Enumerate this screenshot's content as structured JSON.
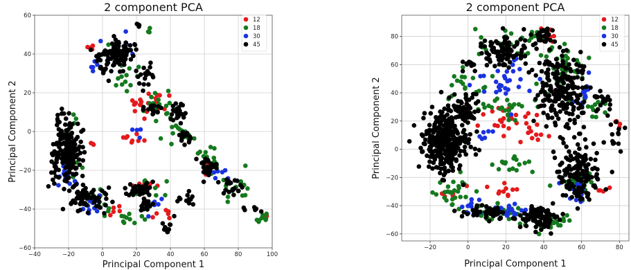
{
  "chart_data": [
    {
      "type": "scatter",
      "title": "2 component PCA",
      "xlabel": "Principal Component 1",
      "ylabel": "Principal Component 2",
      "xlim": [
        -40,
        100
      ],
      "ylim": [
        -60,
        60
      ],
      "xticks": [
        -40,
        -20,
        0,
        20,
        40,
        60,
        80,
        100
      ],
      "yticks": [
        -60,
        -40,
        -20,
        0,
        20,
        40,
        60
      ],
      "tick_labels_x": [
        "−40",
        "−20",
        "0",
        "20",
        "40",
        "60",
        "80",
        "100"
      ],
      "tick_labels_y": [
        "−60",
        "−40",
        "−20",
        "0",
        "20",
        "40",
        "60"
      ],
      "grid": true,
      "legend_position": "top-right",
      "series": [
        {
          "name": "12",
          "color": "#e41a1c",
          "clusters": [
            {
              "cx": -8,
              "cy": 43,
              "rx": 3,
              "ry": 2,
              "n": 4
            },
            {
              "cx": 22,
              "cy": 13,
              "rx": 12,
              "ry": 5,
              "n": 14
            },
            {
              "cx": 32,
              "cy": 16,
              "rx": 10,
              "ry": 4,
              "n": 10
            },
            {
              "cx": 18,
              "cy": -3,
              "rx": 10,
              "ry": 3,
              "n": 8
            },
            {
              "cx": -5,
              "cy": -7,
              "rx": 2,
              "ry": 1.5,
              "n": 3
            },
            {
              "cx": 20,
              "cy": -28,
              "rx": 12,
              "ry": 2,
              "n": 10
            },
            {
              "cx": 5,
              "cy": -42,
              "rx": 6,
              "ry": 3,
              "n": 6
            },
            {
              "cx": 35,
              "cy": -43,
              "rx": 6,
              "ry": 3,
              "n": 6
            },
            {
              "cx": 95,
              "cy": -42,
              "rx": 2,
              "ry": 1.5,
              "n": 2
            },
            {
              "cx": 60,
              "cy": -20,
              "rx": 4,
              "ry": 3,
              "n": 4
            }
          ]
        },
        {
          "name": "18",
          "color": "#157a1e",
          "clusters": [
            {
              "cx": 28,
              "cy": 53,
              "rx": 2,
              "ry": 2,
              "n": 3
            },
            {
              "cx": 10,
              "cy": 30,
              "rx": 10,
              "ry": 12,
              "n": 16
            },
            {
              "cx": 38,
              "cy": 12,
              "rx": 12,
              "ry": 8,
              "n": 18
            },
            {
              "cx": 45,
              "cy": -2,
              "rx": 10,
              "ry": 5,
              "n": 10
            },
            {
              "cx": -17,
              "cy": -10,
              "rx": 5,
              "ry": 14,
              "n": 14
            },
            {
              "cx": 0,
              "cy": -35,
              "rx": 10,
              "ry": 7,
              "n": 14
            },
            {
              "cx": 15,
              "cy": -45,
              "rx": 8,
              "ry": 3,
              "n": 10
            },
            {
              "cx": 60,
              "cy": -15,
              "rx": 8,
              "ry": 8,
              "n": 14
            },
            {
              "cx": 80,
              "cy": -30,
              "rx": 8,
              "ry": 8,
              "n": 14
            },
            {
              "cx": 95,
              "cy": -45,
              "rx": 5,
              "ry": 2,
              "n": 8
            },
            {
              "cx": 30,
              "cy": -30,
              "rx": 10,
              "ry": 4,
              "n": 10
            }
          ]
        },
        {
          "name": "30",
          "color": "#1a33e0",
          "clusters": [
            {
              "cx": -5,
              "cy": 34,
              "rx": 4,
              "ry": 3,
              "n": 5
            },
            {
              "cx": 10,
              "cy": 44,
              "rx": 8,
              "ry": 6,
              "n": 6
            },
            {
              "cx": -20,
              "cy": -25,
              "rx": 6,
              "ry": 6,
              "n": 12
            },
            {
              "cx": -8,
              "cy": -38,
              "rx": 8,
              "ry": 4,
              "n": 12
            },
            {
              "cx": 30,
              "cy": -38,
              "rx": 6,
              "ry": 4,
              "n": 6
            },
            {
              "cx": 68,
              "cy": -22,
              "rx": 6,
              "ry": 6,
              "n": 6
            },
            {
              "cx": 20,
              "cy": 0,
              "rx": 4,
              "ry": 3,
              "n": 4
            }
          ]
        },
        {
          "name": "45",
          "color": "#000000",
          "clusters": [
            {
              "cx": -20,
              "cy": -8,
              "rx": 7,
              "ry": 14,
              "n": 170
            },
            {
              "cx": -28,
              "cy": -20,
              "rx": 4,
              "ry": 10,
              "n": 20
            },
            {
              "cx": 10,
              "cy": 41,
              "rx": 9,
              "ry": 5,
              "n": 90
            },
            {
              "cx": 3,
              "cy": 35,
              "rx": 8,
              "ry": 6,
              "n": 30
            },
            {
              "cx": 25,
              "cy": 28,
              "rx": 5,
              "ry": 8,
              "n": 18
            },
            {
              "cx": 30,
              "cy": 12,
              "rx": 5,
              "ry": 3,
              "n": 18
            },
            {
              "cx": 43,
              "cy": 10,
              "rx": 6,
              "ry": 4,
              "n": 24
            },
            {
              "cx": 48,
              "cy": -3,
              "rx": 5,
              "ry": 3,
              "n": 16
            },
            {
              "cx": 62,
              "cy": -18,
              "rx": 6,
              "ry": 6,
              "n": 30
            },
            {
              "cx": 75,
              "cy": -28,
              "rx": 6,
              "ry": 5,
              "n": 20
            },
            {
              "cx": 22,
              "cy": -30,
              "rx": 7,
              "ry": 3,
              "n": 40
            },
            {
              "cx": -8,
              "cy": -35,
              "rx": 10,
              "ry": 6,
              "n": 60
            },
            {
              "cx": 25,
              "cy": -38,
              "rx": 5,
              "ry": 3,
              "n": 20
            },
            {
              "cx": 38,
              "cy": -48,
              "rx": 3,
              "ry": 5,
              "n": 10
            },
            {
              "cx": 50,
              "cy": -35,
              "rx": 6,
              "ry": 4,
              "n": 12
            },
            {
              "cx": 88,
              "cy": -40,
              "rx": 4,
              "ry": 3,
              "n": 6
            },
            {
              "cx": 20,
              "cy": 55,
              "rx": 3,
              "ry": 2,
              "n": 4
            }
          ]
        }
      ]
    },
    {
      "type": "scatter",
      "title": "2 component PCA",
      "xlabel": "Principal Component 1",
      "ylabel": "Principal Component 2",
      "xlim": [
        -35,
        85
      ],
      "ylim": [
        -65,
        95
      ],
      "xticks": [
        -20,
        0,
        20,
        40,
        60,
        80
      ],
      "yticks": [
        -60,
        -40,
        -20,
        0,
        20,
        40,
        60,
        80
      ],
      "tick_labels_x": [
        "−20",
        "0",
        "20",
        "40",
        "60",
        "80"
      ],
      "tick_labels_y": [
        "−60",
        "−40",
        "−20",
        "0",
        "20",
        "40",
        "60",
        "80"
      ],
      "grid": true,
      "legend_position": "top-right",
      "series": [
        {
          "name": "12",
          "color": "#e41a1c",
          "clusters": [
            {
              "cx": 22,
              "cy": 20,
              "rx": 10,
              "ry": 8,
              "n": 24
            },
            {
              "cx": 35,
              "cy": 10,
              "rx": 8,
              "ry": 8,
              "n": 10
            },
            {
              "cx": 42,
              "cy": 80,
              "rx": 5,
              "ry": 6,
              "n": 8
            },
            {
              "cx": 22,
              "cy": -30,
              "rx": 10,
              "ry": 5,
              "n": 10
            },
            {
              "cx": -8,
              "cy": -30,
              "rx": 6,
              "ry": 6,
              "n": 6
            },
            {
              "cx": 80,
              "cy": 20,
              "rx": 3,
              "ry": 5,
              "n": 4
            },
            {
              "cx": 70,
              "cy": -30,
              "rx": 3,
              "ry": 3,
              "n": 4
            }
          ]
        },
        {
          "name": "18",
          "color": "#157a1e",
          "clusters": [
            {
              "cx": 30,
              "cy": 75,
              "rx": 20,
              "ry": 12,
              "n": 40
            },
            {
              "cx": 0,
              "cy": 45,
              "rx": 10,
              "ry": 10,
              "n": 20
            },
            {
              "cx": 20,
              "cy": 30,
              "rx": 15,
              "ry": 8,
              "n": 24
            },
            {
              "cx": 50,
              "cy": 50,
              "rx": 12,
              "ry": 20,
              "n": 30
            },
            {
              "cx": -10,
              "cy": -30,
              "rx": 10,
              "ry": 8,
              "n": 26
            },
            {
              "cx": 15,
              "cy": -45,
              "rx": 15,
              "ry": 6,
              "n": 30
            },
            {
              "cx": 45,
              "cy": -50,
              "rx": 12,
              "ry": 6,
              "n": 30
            },
            {
              "cx": 60,
              "cy": -20,
              "rx": 8,
              "ry": 10,
              "n": 20
            },
            {
              "cx": 25,
              "cy": -10,
              "rx": 12,
              "ry": 6,
              "n": 16
            },
            {
              "cx": 68,
              "cy": 30,
              "rx": 5,
              "ry": 10,
              "n": 10
            }
          ]
        },
        {
          "name": "30",
          "color": "#1a33e0",
          "clusters": [
            {
              "cx": 20,
              "cy": 50,
              "rx": 15,
              "ry": 15,
              "n": 30
            },
            {
              "cx": 25,
              "cy": -45,
              "rx": 15,
              "ry": 5,
              "n": 24
            },
            {
              "cx": 55,
              "cy": -30,
              "rx": 8,
              "ry": 10,
              "n": 14
            },
            {
              "cx": 2,
              "cy": -40,
              "rx": 6,
              "ry": 6,
              "n": 10
            },
            {
              "cx": 62,
              "cy": 40,
              "rx": 6,
              "ry": 15,
              "n": 14
            },
            {
              "cx": 10,
              "cy": 10,
              "rx": 6,
              "ry": 6,
              "n": 6
            }
          ]
        },
        {
          "name": "45",
          "color": "#000000",
          "clusters": [
            {
              "cx": -12,
              "cy": 5,
              "rx": 11,
              "ry": 20,
              "n": 320
            },
            {
              "cx": -2,
              "cy": 28,
              "rx": 8,
              "ry": 10,
              "n": 60
            },
            {
              "cx": 18,
              "cy": 68,
              "rx": 14,
              "ry": 10,
              "n": 90
            },
            {
              "cx": 40,
              "cy": 82,
              "rx": 6,
              "ry": 6,
              "n": 30
            },
            {
              "cx": 50,
              "cy": 40,
              "rx": 12,
              "ry": 25,
              "n": 220
            },
            {
              "cx": 58,
              "cy": -15,
              "rx": 10,
              "ry": 20,
              "n": 150
            },
            {
              "cx": 38,
              "cy": -48,
              "rx": 10,
              "ry": 8,
              "n": 100
            },
            {
              "cx": 10,
              "cy": -45,
              "rx": 10,
              "ry": 5,
              "n": 50
            },
            {
              "cx": 72,
              "cy": 35,
              "rx": 6,
              "ry": 8,
              "n": 16
            },
            {
              "cx": 78,
              "cy": 10,
              "rx": 5,
              "ry": 10,
              "n": 12
            },
            {
              "cx": 0,
              "cy": 60,
              "rx": 4,
              "ry": 4,
              "n": 10
            }
          ]
        }
      ]
    }
  ]
}
